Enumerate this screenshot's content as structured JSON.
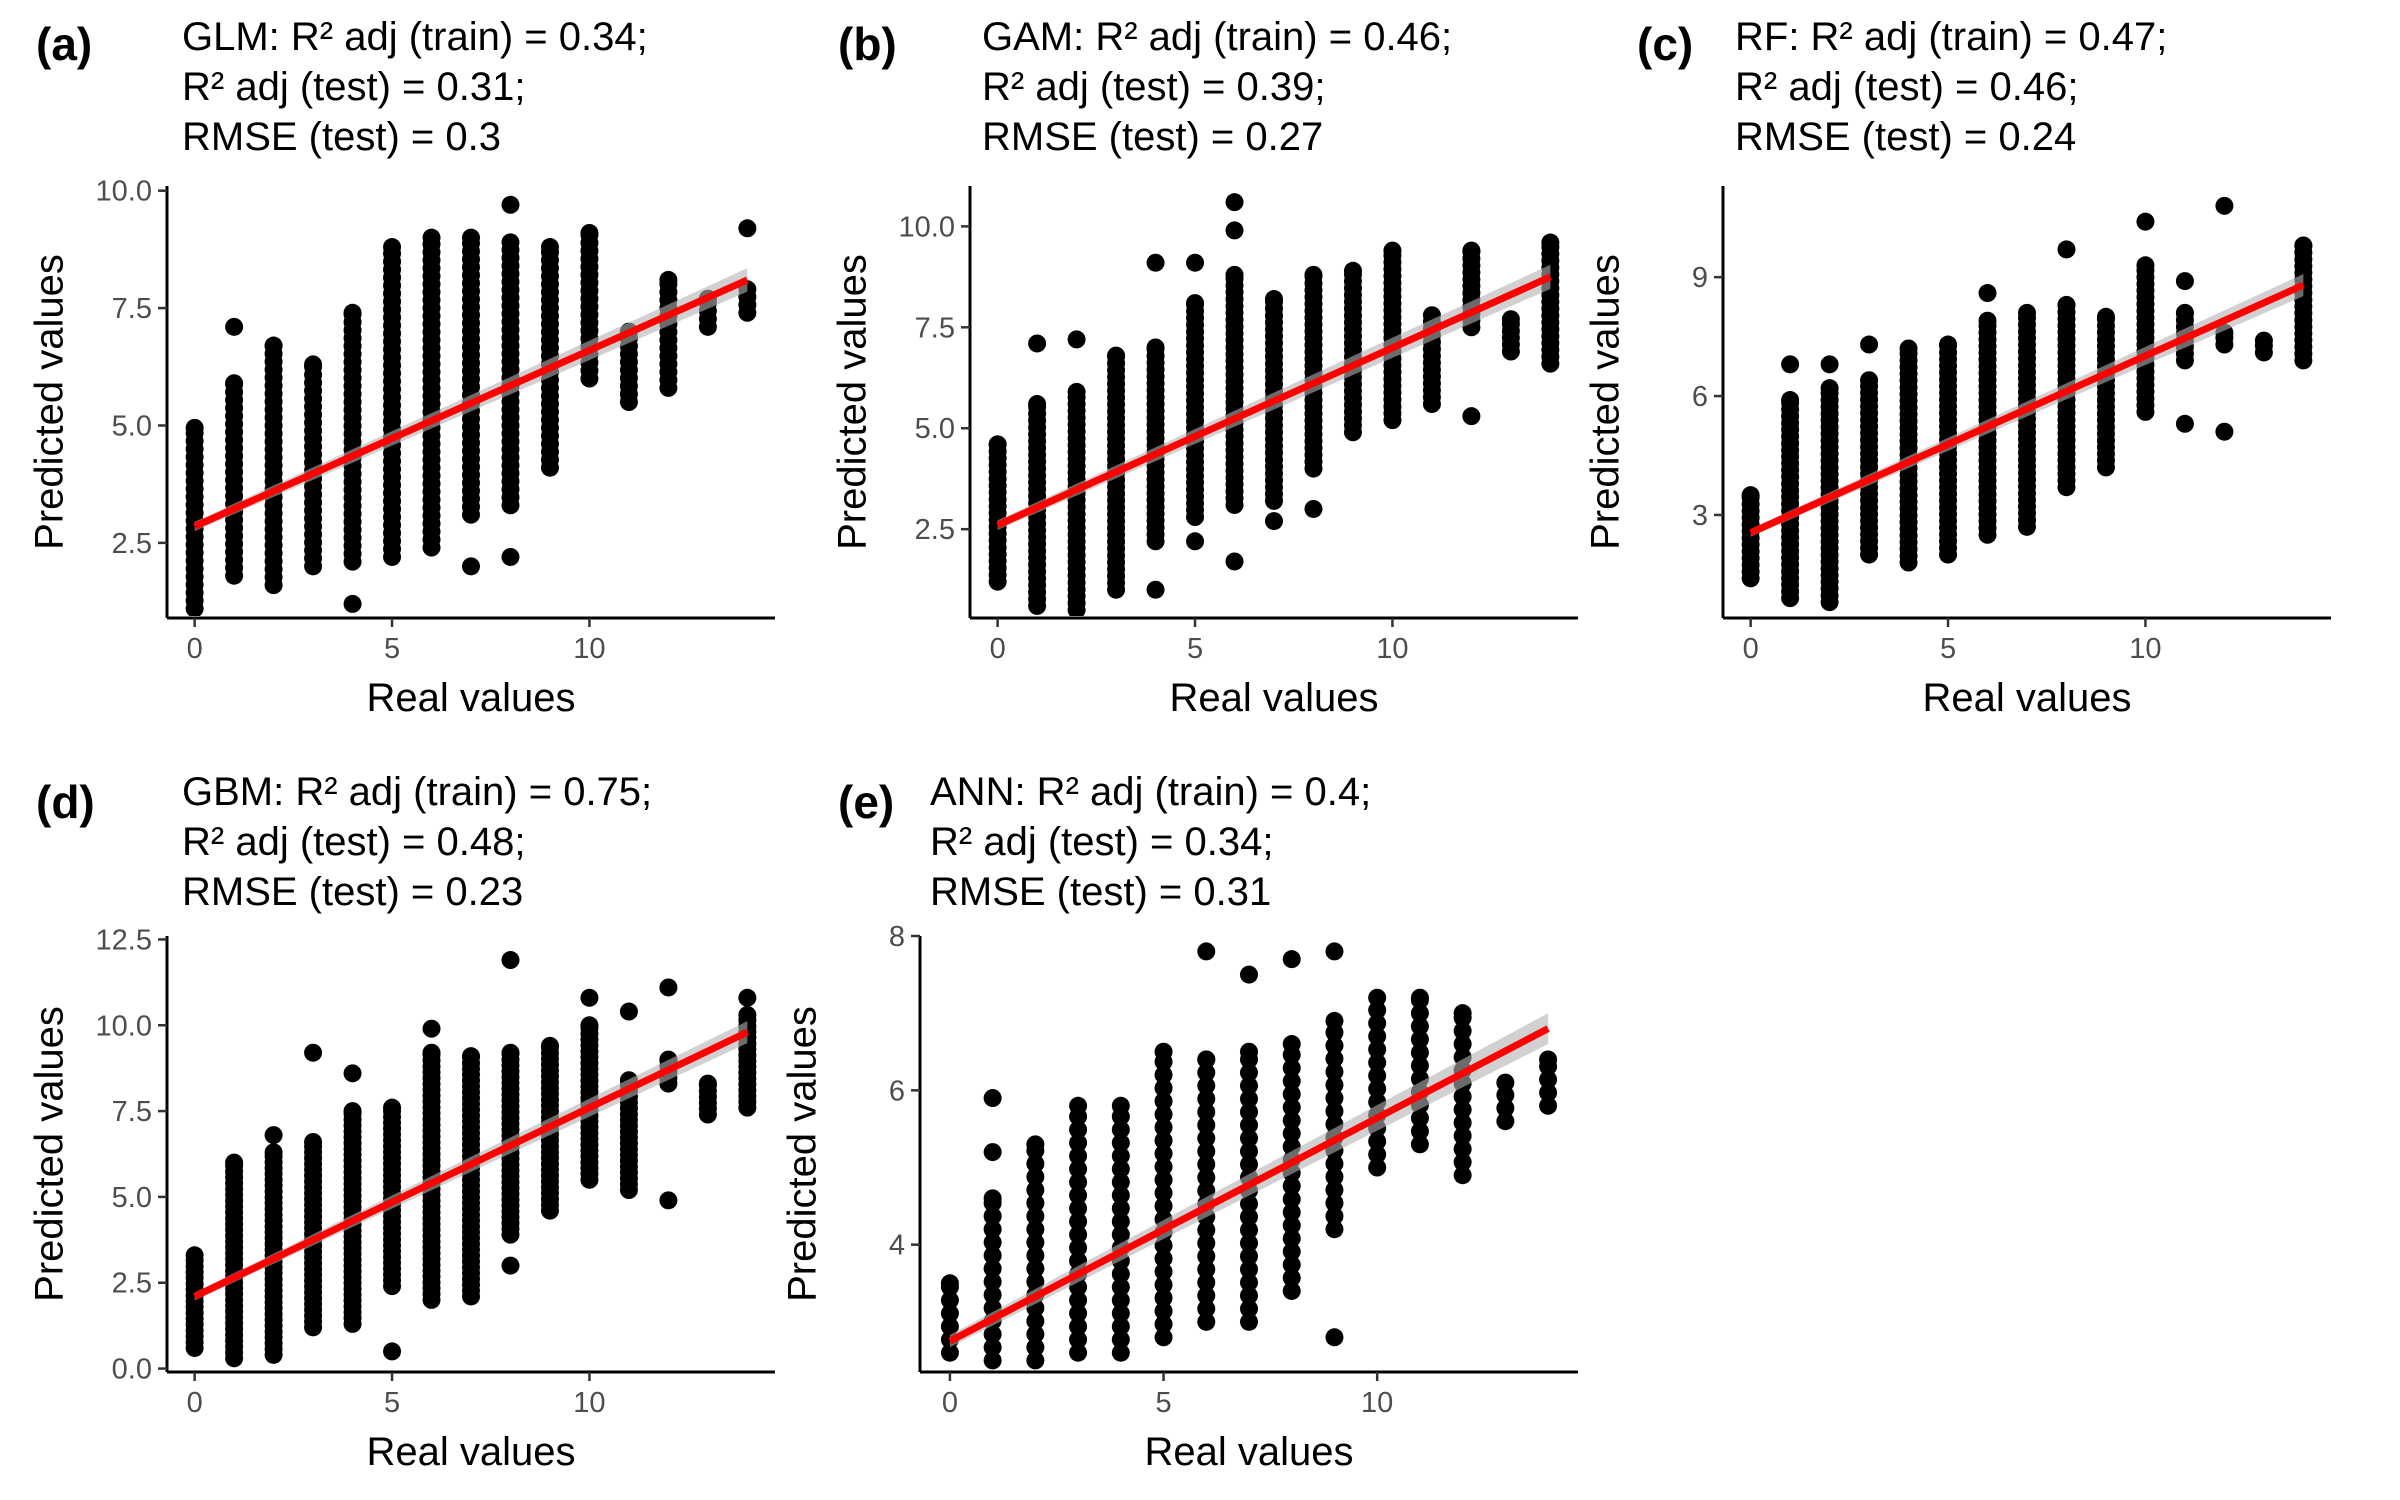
{
  "chart_data": [
    {
      "panel": "(a)",
      "type": "scatter",
      "title": [
        "GLM: R² adj (train) = 0.34;",
        "R² adj (test) = 0.31;",
        "RMSE (test) = 0.3"
      ],
      "xlabel": "Real values",
      "ylabel": "Predicted values",
      "xlim": [
        -0.7,
        14.7
      ],
      "ylim": [
        0.9,
        10.1
      ],
      "xticks": [
        0,
        5,
        10
      ],
      "xtick_labels": [
        "0",
        "5",
        "10"
      ],
      "yticks": [
        2.5,
        5.0,
        7.5,
        10.0
      ],
      "ytick_labels": [
        "2.5",
        "5.0",
        "7.5",
        "10.0"
      ],
      "fit": {
        "x": [
          0,
          14
        ],
        "y": [
          2.85,
          8.1
        ],
        "se": [
          0.1,
          0.25
        ]
      },
      "columns": [
        {
          "x": 0,
          "lo": 1.1,
          "hi": 4.95,
          "outliers": []
        },
        {
          "x": 1,
          "lo": 1.8,
          "hi": 5.9,
          "outliers": [
            7.1
          ]
        },
        {
          "x": 2,
          "lo": 1.6,
          "hi": 6.7,
          "outliers": []
        },
        {
          "x": 3,
          "lo": 2.0,
          "hi": 6.3,
          "outliers": []
        },
        {
          "x": 4,
          "lo": 2.1,
          "hi": 7.4,
          "outliers": [
            1.2
          ]
        },
        {
          "x": 5,
          "lo": 2.2,
          "hi": 8.8,
          "outliers": []
        },
        {
          "x": 6,
          "lo": 2.4,
          "hi": 9.0,
          "outliers": []
        },
        {
          "x": 7,
          "lo": 3.1,
          "hi": 9.0,
          "outliers": [
            2.0
          ]
        },
        {
          "x": 8,
          "lo": 3.3,
          "hi": 8.9,
          "outliers": [
            2.2,
            9.7
          ]
        },
        {
          "x": 9,
          "lo": 4.1,
          "hi": 8.8,
          "outliers": []
        },
        {
          "x": 10,
          "lo": 6.0,
          "hi": 9.1,
          "outliers": []
        },
        {
          "x": 11,
          "lo": 5.5,
          "hi": 7.0,
          "outliers": []
        },
        {
          "x": 12,
          "lo": 5.8,
          "hi": 8.1,
          "outliers": []
        },
        {
          "x": 13,
          "lo": 7.1,
          "hi": 7.7,
          "outliers": []
        },
        {
          "x": 14,
          "lo": 7.4,
          "hi": 7.9,
          "outliers": [
            9.2
          ]
        }
      ]
    },
    {
      "panel": "(b)",
      "type": "scatter",
      "title": [
        "GAM: R² adj (train) = 0.46;",
        "R² adj (test) = 0.39;",
        "RMSE (test) = 0.27"
      ],
      "xlabel": "Real values",
      "ylabel": "Predicted values",
      "xlim": [
        -0.7,
        14.7
      ],
      "ylim": [
        0.3,
        11.0
      ],
      "xticks": [
        0,
        5,
        10
      ],
      "xtick_labels": [
        "0",
        "5",
        "10"
      ],
      "yticks": [
        2.5,
        5.0,
        7.5,
        10.0
      ],
      "ytick_labels": [
        "2.5",
        "5.0",
        "7.5",
        "10.0"
      ],
      "fit": {
        "x": [
          0,
          14
        ],
        "y": [
          2.6,
          8.75
        ],
        "se": [
          0.12,
          0.3
        ]
      },
      "columns": [
        {
          "x": 0,
          "lo": 1.2,
          "hi": 4.6,
          "outliers": []
        },
        {
          "x": 1,
          "lo": 0.6,
          "hi": 5.6,
          "outliers": [
            7.1
          ]
        },
        {
          "x": 2,
          "lo": 0.5,
          "hi": 5.9,
          "outliers": [
            7.2
          ]
        },
        {
          "x": 3,
          "lo": 1.0,
          "hi": 6.8,
          "outliers": []
        },
        {
          "x": 4,
          "lo": 2.2,
          "hi": 7.0,
          "outliers": [
            1.0,
            9.1
          ]
        },
        {
          "x": 5,
          "lo": 2.8,
          "hi": 8.1,
          "outliers": [
            2.2,
            9.1
          ]
        },
        {
          "x": 6,
          "lo": 3.1,
          "hi": 8.8,
          "outliers": [
            1.7,
            10.6,
            9.9
          ]
        },
        {
          "x": 7,
          "lo": 3.2,
          "hi": 8.2,
          "outliers": [
            2.7
          ]
        },
        {
          "x": 8,
          "lo": 4.0,
          "hi": 8.8,
          "outliers": [
            3.0
          ]
        },
        {
          "x": 9,
          "lo": 4.9,
          "hi": 8.9,
          "outliers": []
        },
        {
          "x": 10,
          "lo": 5.2,
          "hi": 9.4,
          "outliers": []
        },
        {
          "x": 11,
          "lo": 5.6,
          "hi": 7.8,
          "outliers": []
        },
        {
          "x": 12,
          "lo": 7.5,
          "hi": 9.4,
          "outliers": [
            5.3
          ]
        },
        {
          "x": 13,
          "lo": 6.9,
          "hi": 7.7,
          "outliers": []
        },
        {
          "x": 14,
          "lo": 6.6,
          "hi": 9.6,
          "outliers": []
        }
      ]
    },
    {
      "panel": "(c)",
      "type": "scatter",
      "title": [
        "RF: R² adj (train) = 0.47;",
        "R² adj (test) = 0.46;",
        "RMSE (test) = 0.24"
      ],
      "xlabel": "Real values",
      "ylabel": "Predicted values",
      "xlim": [
        -0.7,
        14.7
      ],
      "ylim": [
        0.4,
        11.3
      ],
      "xticks": [
        0,
        5,
        10
      ],
      "xtick_labels": [
        "0",
        "5",
        "10"
      ],
      "yticks": [
        3,
        6,
        9
      ],
      "ytick_labels": [
        "3",
        "6",
        "9"
      ],
      "fit": {
        "x": [
          0,
          14
        ],
        "y": [
          2.55,
          8.8
        ],
        "se": [
          0.1,
          0.28
        ]
      },
      "columns": [
        {
          "x": 0,
          "lo": 1.4,
          "hi": 3.5,
          "outliers": []
        },
        {
          "x": 1,
          "lo": 0.9,
          "hi": 5.9,
          "outliers": [
            6.8
          ]
        },
        {
          "x": 2,
          "lo": 0.8,
          "hi": 6.2,
          "outliers": [
            6.8
          ]
        },
        {
          "x": 3,
          "lo": 2.0,
          "hi": 6.4,
          "outliers": [
            7.3
          ]
        },
        {
          "x": 4,
          "lo": 1.8,
          "hi": 7.2,
          "outliers": []
        },
        {
          "x": 5,
          "lo": 2.0,
          "hi": 7.3,
          "outliers": []
        },
        {
          "x": 6,
          "lo": 2.5,
          "hi": 7.9,
          "outliers": [
            8.6
          ]
        },
        {
          "x": 7,
          "lo": 2.7,
          "hi": 8.1,
          "outliers": []
        },
        {
          "x": 8,
          "lo": 3.7,
          "hi": 8.3,
          "outliers": [
            9.7
          ]
        },
        {
          "x": 9,
          "lo": 4.2,
          "hi": 8.0,
          "outliers": []
        },
        {
          "x": 10,
          "lo": 5.6,
          "hi": 9.3,
          "outliers": [
            10.4
          ]
        },
        {
          "x": 11,
          "lo": 6.9,
          "hi": 8.1,
          "outliers": [
            5.3,
            8.9
          ]
        },
        {
          "x": 12,
          "lo": 7.3,
          "hi": 7.6,
          "outliers": [
            5.1,
            10.8
          ]
        },
        {
          "x": 13,
          "lo": 7.1,
          "hi": 7.4,
          "outliers": []
        },
        {
          "x": 14,
          "lo": 6.9,
          "hi": 9.8,
          "outliers": []
        }
      ]
    },
    {
      "panel": "(d)",
      "type": "scatter",
      "title": [
        "GBM: R² adj (train) = 0.75;",
        "R² adj (test) = 0.48;",
        "RMSE (test) = 0.23"
      ],
      "xlabel": "Real values",
      "ylabel": "Predicted values",
      "xlim": [
        -0.7,
        14.7
      ],
      "ylim": [
        -0.1,
        12.6
      ],
      "xticks": [
        0,
        5,
        10
      ],
      "xtick_labels": [
        "0",
        "5",
        "10"
      ],
      "yticks": [
        0.0,
        2.5,
        5.0,
        7.5,
        10.0,
        12.5
      ],
      "ytick_labels": [
        "0.0",
        "2.5",
        "5.0",
        "7.5",
        "10.0",
        "12.5"
      ],
      "fit": {
        "x": [
          0,
          14
        ],
        "y": [
          2.1,
          9.8
        ],
        "se": [
          0.12,
          0.32
        ]
      },
      "columns": [
        {
          "x": 0,
          "lo": 0.6,
          "hi": 3.3,
          "outliers": []
        },
        {
          "x": 1,
          "lo": 0.3,
          "hi": 6.0,
          "outliers": []
        },
        {
          "x": 2,
          "lo": 0.4,
          "hi": 6.3,
          "outliers": [
            6.8
          ]
        },
        {
          "x": 3,
          "lo": 1.2,
          "hi": 6.6,
          "outliers": [
            9.2
          ]
        },
        {
          "x": 4,
          "lo": 1.3,
          "hi": 7.5,
          "outliers": [
            8.6
          ]
        },
        {
          "x": 5,
          "lo": 2.4,
          "hi": 7.6,
          "outliers": [
            0.5
          ]
        },
        {
          "x": 6,
          "lo": 2.0,
          "hi": 9.2,
          "outliers": [
            9.9
          ]
        },
        {
          "x": 7,
          "lo": 2.1,
          "hi": 9.1,
          "outliers": []
        },
        {
          "x": 8,
          "lo": 3.9,
          "hi": 9.2,
          "outliers": [
            3.0,
            11.9
          ]
        },
        {
          "x": 9,
          "lo": 4.6,
          "hi": 9.4,
          "outliers": []
        },
        {
          "x": 10,
          "lo": 5.5,
          "hi": 10.0,
          "outliers": [
            10.8
          ]
        },
        {
          "x": 11,
          "lo": 5.2,
          "hi": 8.4,
          "outliers": [
            10.4
          ]
        },
        {
          "x": 12,
          "lo": 8.3,
          "hi": 9.0,
          "outliers": [
            4.9,
            11.1
          ]
        },
        {
          "x": 13,
          "lo": 7.4,
          "hi": 8.3,
          "outliers": []
        },
        {
          "x": 14,
          "lo": 7.6,
          "hi": 10.3,
          "outliers": [
            10.8
          ]
        }
      ]
    },
    {
      "panel": "(e)",
      "type": "scatter",
      "title": [
        "ANN: R² adj (train) = 0.4;",
        "R² adj (test) = 0.34;",
        "RMSE (test) = 0.31"
      ],
      "xlabel": "Real values",
      "ylabel": "Predicted values",
      "xlim": [
        -0.7,
        14.7
      ],
      "ylim": [
        2.35,
        8.0
      ],
      "xticks": [
        0,
        5,
        10
      ],
      "xtick_labels": [
        "0",
        "5",
        "10"
      ],
      "yticks": [
        4,
        6,
        8
      ],
      "ytick_labels": [
        "4",
        "6",
        "8"
      ],
      "fit": {
        "x": [
          0,
          14
        ],
        "y": [
          2.75,
          6.8
        ],
        "se": [
          0.08,
          0.2
        ]
      },
      "columns": [
        {
          "x": 0,
          "lo": 2.6,
          "hi": 3.5,
          "outliers": []
        },
        {
          "x": 1,
          "lo": 2.5,
          "hi": 4.6,
          "outliers": [
            5.2,
            5.9
          ]
        },
        {
          "x": 2,
          "lo": 2.5,
          "hi": 5.3,
          "outliers": []
        },
        {
          "x": 3,
          "lo": 2.6,
          "hi": 5.8,
          "outliers": []
        },
        {
          "x": 4,
          "lo": 2.6,
          "hi": 5.8,
          "outliers": []
        },
        {
          "x": 5,
          "lo": 2.8,
          "hi": 6.5,
          "outliers": []
        },
        {
          "x": 6,
          "lo": 3.0,
          "hi": 6.4,
          "outliers": [
            7.8
          ]
        },
        {
          "x": 7,
          "lo": 3.0,
          "hi": 6.5,
          "outliers": [
            7.5
          ]
        },
        {
          "x": 8,
          "lo": 3.4,
          "hi": 6.6,
          "outliers": [
            7.7
          ]
        },
        {
          "x": 9,
          "lo": 4.2,
          "hi": 6.9,
          "outliers": [
            2.8,
            7.8
          ]
        },
        {
          "x": 10,
          "lo": 5.0,
          "hi": 7.2,
          "outliers": []
        },
        {
          "x": 11,
          "lo": 5.3,
          "hi": 7.2,
          "outliers": []
        },
        {
          "x": 12,
          "lo": 4.9,
          "hi": 7.0,
          "outliers": []
        },
        {
          "x": 13,
          "lo": 5.6,
          "hi": 6.1,
          "outliers": []
        },
        {
          "x": 14,
          "lo": 5.8,
          "hi": 6.4,
          "outliers": []
        }
      ]
    }
  ],
  "colors": {
    "points": "#000000",
    "fit_line": "#ff0000",
    "confidence_band": "#b3b3b3",
    "tick_labels": "#4d4d4d"
  }
}
